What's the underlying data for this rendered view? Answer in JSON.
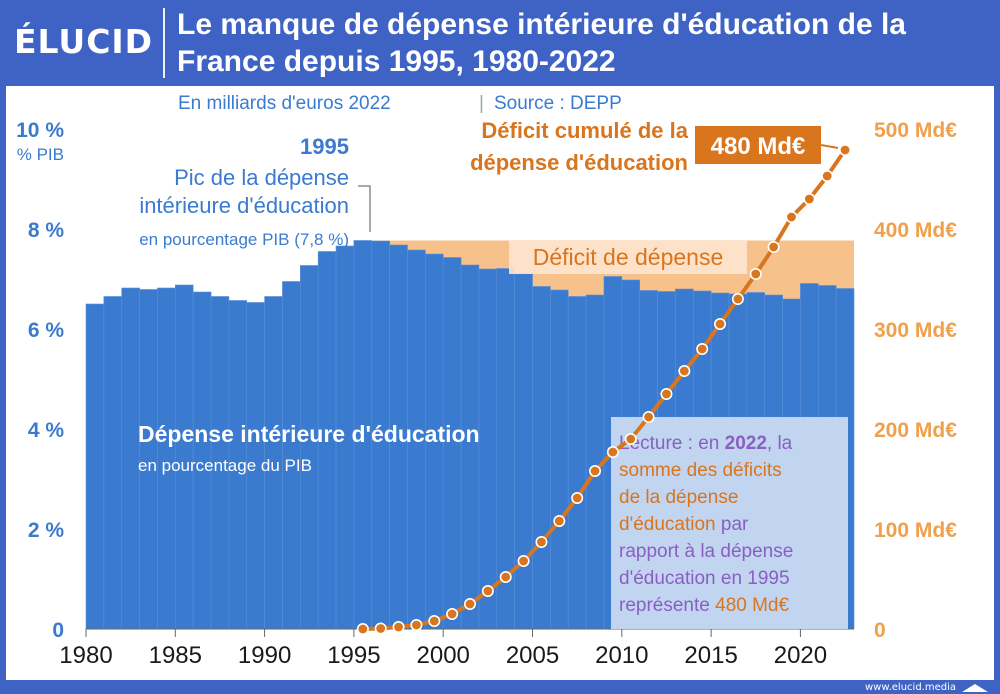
{
  "brand": {
    "logo": "ÉLUCID",
    "website": "www.elucid.media"
  },
  "header": {
    "title": "Le manque de dépense intérieure d'éducation de la France depuis 1995, 1980-2022"
  },
  "colors": {
    "bar": "#3a7bd0",
    "deficit_fill": "#f7c18c",
    "cumulative_line": "#d9751d",
    "left_axis_text": "#3a7bd0",
    "right_axis_text": "#f0a04b",
    "header_bg": "#3f63c4",
    "lecture_text": "#8a5fc2",
    "lecture_bg": "#cbdcf2"
  },
  "chart_data": {
    "type": "bar",
    "subtitle": "En milliards d'euros 2022",
    "source": "Source : DEPP",
    "x_ticks": [
      "1980",
      "1985",
      "1990",
      "1995",
      "2000",
      "2005",
      "2010",
      "2015",
      "2020"
    ],
    "left_axis": {
      "unit_label": "% PIB",
      "ticks": [
        "0",
        "2 %",
        "4 %",
        "6 %",
        "8 %",
        "10 %"
      ],
      "ylim": [
        0,
        10
      ]
    },
    "right_axis": {
      "ticks": [
        "0",
        "100 Md€",
        "200 Md€",
        "300 Md€",
        "400 Md€",
        "500 Md€"
      ],
      "ylim": [
        0,
        500
      ]
    },
    "series": [
      {
        "name": "Dépense intérieure d'éducation",
        "kind": "bar",
        "axis": "left",
        "x": [
          1980,
          1981,
          1982,
          1983,
          1984,
          1985,
          1986,
          1987,
          1988,
          1989,
          1990,
          1991,
          1992,
          1993,
          1994,
          1995,
          1996,
          1997,
          1998,
          1999,
          2000,
          2001,
          2002,
          2003,
          2004,
          2005,
          2006,
          2007,
          2008,
          2009,
          2010,
          2011,
          2012,
          2013,
          2014,
          2015,
          2016,
          2017,
          2018,
          2019,
          2020,
          2021,
          2022
        ],
        "values": [
          6.5,
          6.65,
          6.82,
          6.79,
          6.82,
          6.88,
          6.74,
          6.65,
          6.57,
          6.53,
          6.65,
          6.95,
          7.27,
          7.55,
          7.66,
          7.77,
          7.76,
          7.68,
          7.58,
          7.5,
          7.43,
          7.28,
          7.2,
          7.21,
          7.11,
          6.85,
          6.78,
          6.65,
          6.68,
          7.05,
          6.98,
          6.77,
          6.75,
          6.8,
          6.76,
          6.72,
          6.7,
          6.73,
          6.68,
          6.6,
          6.91,
          6.87,
          6.81
        ]
      },
      {
        "name": "Déficit de dépense",
        "kind": "area",
        "axis": "left",
        "reference_level": 7.77,
        "from_year": 1995
      },
      {
        "name": "Déficit cumulé de la dépense d'éducation",
        "kind": "line",
        "axis": "right",
        "x": [
          1995,
          1996,
          1997,
          1998,
          1999,
          2000,
          2001,
          2002,
          2003,
          2004,
          2005,
          2006,
          2007,
          2008,
          2009,
          2010,
          2011,
          2012,
          2013,
          2014,
          2015,
          2016,
          2017,
          2018,
          2019,
          2020,
          2021,
          2022
        ],
        "values": [
          0,
          0.5,
          2,
          4,
          8,
          15,
          25,
          38,
          52,
          68,
          87,
          108,
          131,
          158,
          177,
          190,
          212,
          235,
          258,
          280,
          305,
          330,
          355,
          382,
          412,
          430,
          453,
          479
        ]
      }
    ],
    "annotations": {
      "peak_year": "1995",
      "peak_text": [
        "Pic de la dépense",
        "intérieure d'éducation"
      ],
      "peak_text_small": "en pourcentage PIB (7,8 %)",
      "bar_label": "Dépense intérieure d'éducation",
      "bar_sublabel": "en pourcentage du PIB",
      "deficit_label": "Déficit de dépense",
      "cumulative_label": [
        "Déficit cumulé de la",
        "dépense d'éducation"
      ],
      "cumulative_value": "480 Md€",
      "lecture_lines": [
        [
          {
            "t": "Lecture : en ",
            "c": "p"
          },
          {
            "t": "2022",
            "c": "pb"
          },
          {
            "t": ", la",
            "c": "p"
          }
        ],
        [
          {
            "t": "somme des déficits",
            "c": "o"
          }
        ],
        [
          {
            "t": "de la dépense",
            "c": "o"
          }
        ],
        [
          {
            "t": "d'éducation",
            "c": "o"
          },
          {
            "t": " par",
            "c": "p"
          }
        ],
        [
          {
            "t": "rapport à la dépense",
            "c": "p"
          }
        ],
        [
          {
            "t": "d'éducation en 1995",
            "c": "p"
          }
        ],
        [
          {
            "t": "représente ",
            "c": "p"
          },
          {
            "t": "480 Md€",
            "c": "o"
          }
        ]
      ]
    }
  }
}
